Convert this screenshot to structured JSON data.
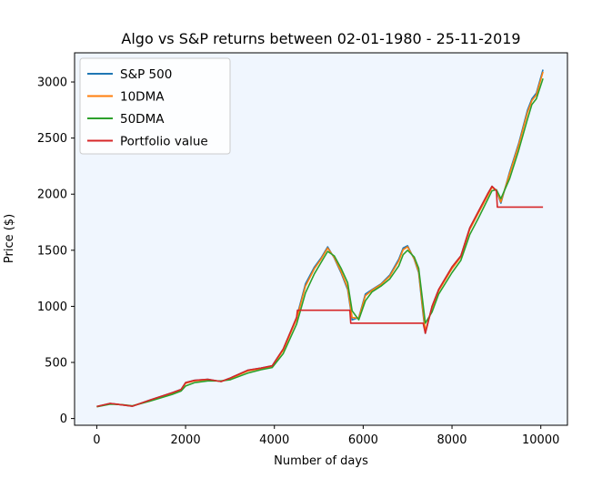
{
  "chart_data": {
    "type": "line",
    "title": "Algo vs S&P returns between 02-01-1980 - 25-11-2019",
    "xlabel": "Number of days",
    "ylabel": "Price ($)",
    "xlim": [
      -500,
      10600
    ],
    "ylim": [
      -60,
      3260
    ],
    "xticks": [
      0,
      2000,
      4000,
      6000,
      8000,
      10000
    ],
    "yticks": [
      0,
      500,
      1000,
      1500,
      2000,
      2500,
      3000
    ],
    "background": "#f0f6fe",
    "grid": false,
    "legend_position": "upper left",
    "series": [
      {
        "name": "S&P 500",
        "color": "#1f77b4",
        "x": [
          0,
          300,
          600,
          800,
          1200,
          1700,
          1900,
          2000,
          2200,
          2500,
          2800,
          3000,
          3400,
          3700,
          3950,
          4200,
          4500,
          4700,
          4900,
          5050,
          5200,
          5350,
          5500,
          5650,
          5750,
          5900,
          6050,
          6200,
          6400,
          6600,
          6800,
          6900,
          7000,
          7150,
          7250,
          7330,
          7400,
          7550,
          7700,
          8000,
          8200,
          8400,
          8600,
          8800,
          8900,
          9000,
          9100,
          9300,
          9500,
          9700,
          9800,
          9900,
          10050
        ],
        "values": [
          107,
          135,
          120,
          110,
          165,
          230,
          260,
          320,
          340,
          350,
          330,
          360,
          430,
          450,
          470,
          620,
          900,
          1200,
          1350,
          1430,
          1530,
          1430,
          1300,
          1150,
          880,
          900,
          1110,
          1150,
          1200,
          1280,
          1420,
          1520,
          1540,
          1420,
          1300,
          1000,
          760,
          1000,
          1150,
          1350,
          1450,
          1700,
          1850,
          2000,
          2070,
          2030,
          1920,
          2200,
          2450,
          2750,
          2850,
          2900,
          3110
        ]
      },
      {
        "name": "10DMA",
        "color": "#ff7f0e",
        "x": [
          0,
          300,
          600,
          800,
          1200,
          1700,
          1900,
          2000,
          2200,
          2500,
          2800,
          3000,
          3400,
          3700,
          3950,
          4200,
          4500,
          4700,
          4900,
          5050,
          5200,
          5350,
          5500,
          5650,
          5750,
          5900,
          6050,
          6200,
          6400,
          6600,
          6800,
          6900,
          7000,
          7150,
          7250,
          7330,
          7400,
          7550,
          7700,
          8000,
          8200,
          8400,
          8600,
          8800,
          8900,
          9000,
          9100,
          9300,
          9500,
          9700,
          9800,
          9900,
          10050
        ],
        "values": [
          106,
          133,
          121,
          111,
          162,
          226,
          256,
          314,
          336,
          346,
          331,
          356,
          424,
          446,
          466,
          610,
          885,
          1180,
          1335,
          1420,
          1520,
          1435,
          1310,
          1165,
          900,
          895,
          1095,
          1145,
          1195,
          1270,
          1405,
          1505,
          1530,
          1425,
          1310,
          1020,
          780,
          985,
          1140,
          1335,
          1440,
          1685,
          1835,
          1985,
          2060,
          2035,
          1930,
          2185,
          2435,
          2730,
          2835,
          2885,
          3090
        ]
      },
      {
        "name": "50DMA",
        "color": "#2ca02c",
        "x": [
          0,
          300,
          600,
          800,
          1200,
          1700,
          1900,
          2000,
          2200,
          2500,
          2800,
          3000,
          3400,
          3700,
          3950,
          4200,
          4500,
          4700,
          4900,
          5050,
          5200,
          5350,
          5500,
          5650,
          5750,
          5900,
          6050,
          6200,
          6400,
          6600,
          6800,
          6900,
          7000,
          7150,
          7250,
          7330,
          7400,
          7550,
          7700,
          8000,
          8200,
          8400,
          8600,
          8800,
          8900,
          9000,
          9100,
          9300,
          9500,
          9700,
          9800,
          9900,
          10050
        ],
        "values": [
          105,
          128,
          123,
          113,
          155,
          215,
          245,
          290,
          320,
          335,
          335,
          345,
          405,
          435,
          455,
          580,
          840,
          1120,
          1290,
          1390,
          1490,
          1450,
          1340,
          1210,
          960,
          880,
          1050,
          1130,
          1180,
          1245,
          1360,
          1460,
          1500,
          1440,
          1340,
          1080,
          850,
          950,
          1110,
          1300,
          1410,
          1640,
          1790,
          1950,
          2030,
          2040,
          1960,
          2140,
          2390,
          2670,
          2800,
          2850,
          3030
        ]
      },
      {
        "name": "Portfolio value",
        "color": "#d62728",
        "x": [
          0,
          300,
          600,
          800,
          1200,
          1700,
          1900,
          2000,
          2200,
          2500,
          2800,
          3000,
          3400,
          3700,
          3950,
          4200,
          4500,
          4520,
          5700,
          5720,
          7330,
          7350,
          7400,
          7550,
          7700,
          8000,
          8200,
          8400,
          8600,
          8800,
          8900,
          9000,
          9020,
          10050
        ],
        "values": [
          107,
          135,
          120,
          110,
          165,
          230,
          260,
          320,
          340,
          350,
          330,
          360,
          430,
          450,
          470,
          620,
          900,
          965,
          965,
          850,
          850,
          850,
          760,
          1000,
          1150,
          1350,
          1450,
          1700,
          1850,
          2000,
          2070,
          2030,
          1885,
          1885
        ]
      }
    ]
  }
}
